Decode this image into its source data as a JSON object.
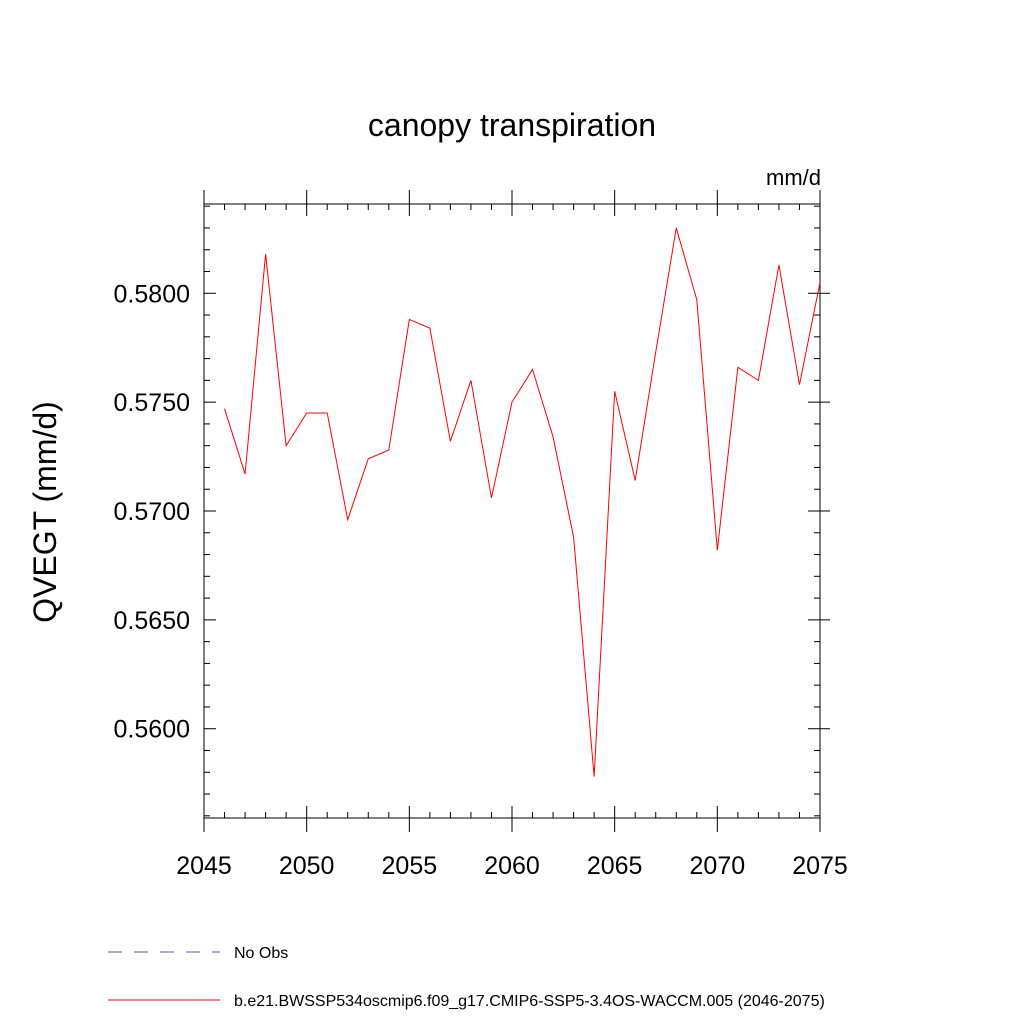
{
  "chart_data": {
    "type": "line",
    "title": "canopy transpiration",
    "units": "mm/d",
    "xlabel": "",
    "ylabel": "QVEGT  (mm/d)",
    "xlim": [
      2045,
      2075
    ],
    "ylim": [
      0.5559,
      0.5841
    ],
    "x_ticks": [
      "2045",
      "2050",
      "2055",
      "2060",
      "2065",
      "2070",
      "2075"
    ],
    "y_ticks": [
      "0.5600",
      "0.5650",
      "0.5700",
      "0.5750",
      "0.5800"
    ],
    "grid": false,
    "legend_position": "bottom",
    "series": [
      {
        "name": "b.e21.BWSSP534oscmip6.f09_g17.CMIP6-SSP5-3.4OS-WACCM.005 (2046-2075)",
        "color": "#ff0000",
        "style": "solid",
        "x": [
          2046,
          2047,
          2048,
          2049,
          2050,
          2051,
          2052,
          2053,
          2054,
          2055,
          2056,
          2057,
          2058,
          2059,
          2060,
          2061,
          2062,
          2063,
          2064,
          2065,
          2066,
          2067,
          2068,
          2069,
          2070,
          2071,
          2072,
          2073,
          2074,
          2075
        ],
        "values": [
          0.5747,
          0.5717,
          0.5818,
          0.573,
          0.5745,
          0.5745,
          0.5696,
          0.5724,
          0.5728,
          0.5788,
          0.5784,
          0.5732,
          0.576,
          0.5706,
          0.575,
          0.5765,
          0.5734,
          0.5688,
          0.5578,
          0.5755,
          0.5714,
          0.5773,
          0.583,
          0.5797,
          0.5682,
          0.5766,
          0.576,
          0.5813,
          0.5758,
          0.5805
        ]
      },
      {
        "name": "No Obs",
        "color": "#5a5aa0",
        "style": "dashed",
        "x": [],
        "values": []
      }
    ]
  }
}
